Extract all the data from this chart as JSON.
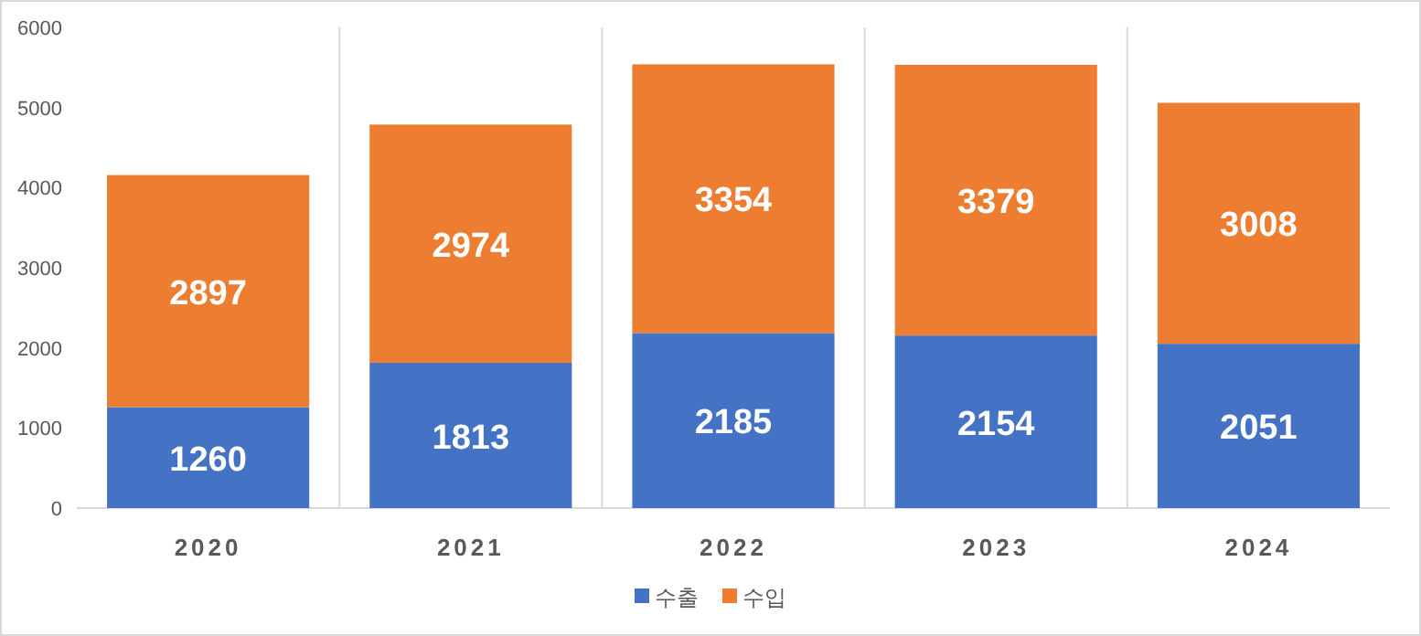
{
  "chart_data": {
    "type": "bar",
    "stacked": true,
    "categories": [
      "2020",
      "2021",
      "2022",
      "2023",
      "2024"
    ],
    "series": [
      {
        "name": "수출",
        "color": "#4472c4",
        "values": [
          1260,
          1813,
          2185,
          2154,
          2051
        ]
      },
      {
        "name": "수입",
        "color": "#ed7d31",
        "values": [
          2897,
          2974,
          3354,
          3379,
          3008
        ]
      }
    ],
    "ylim": [
      0,
      6000
    ],
    "yticks": [
      0,
      1000,
      2000,
      3000,
      4000,
      5000,
      6000
    ],
    "grid": "x",
    "data_labels": true,
    "legend": "bottom"
  }
}
